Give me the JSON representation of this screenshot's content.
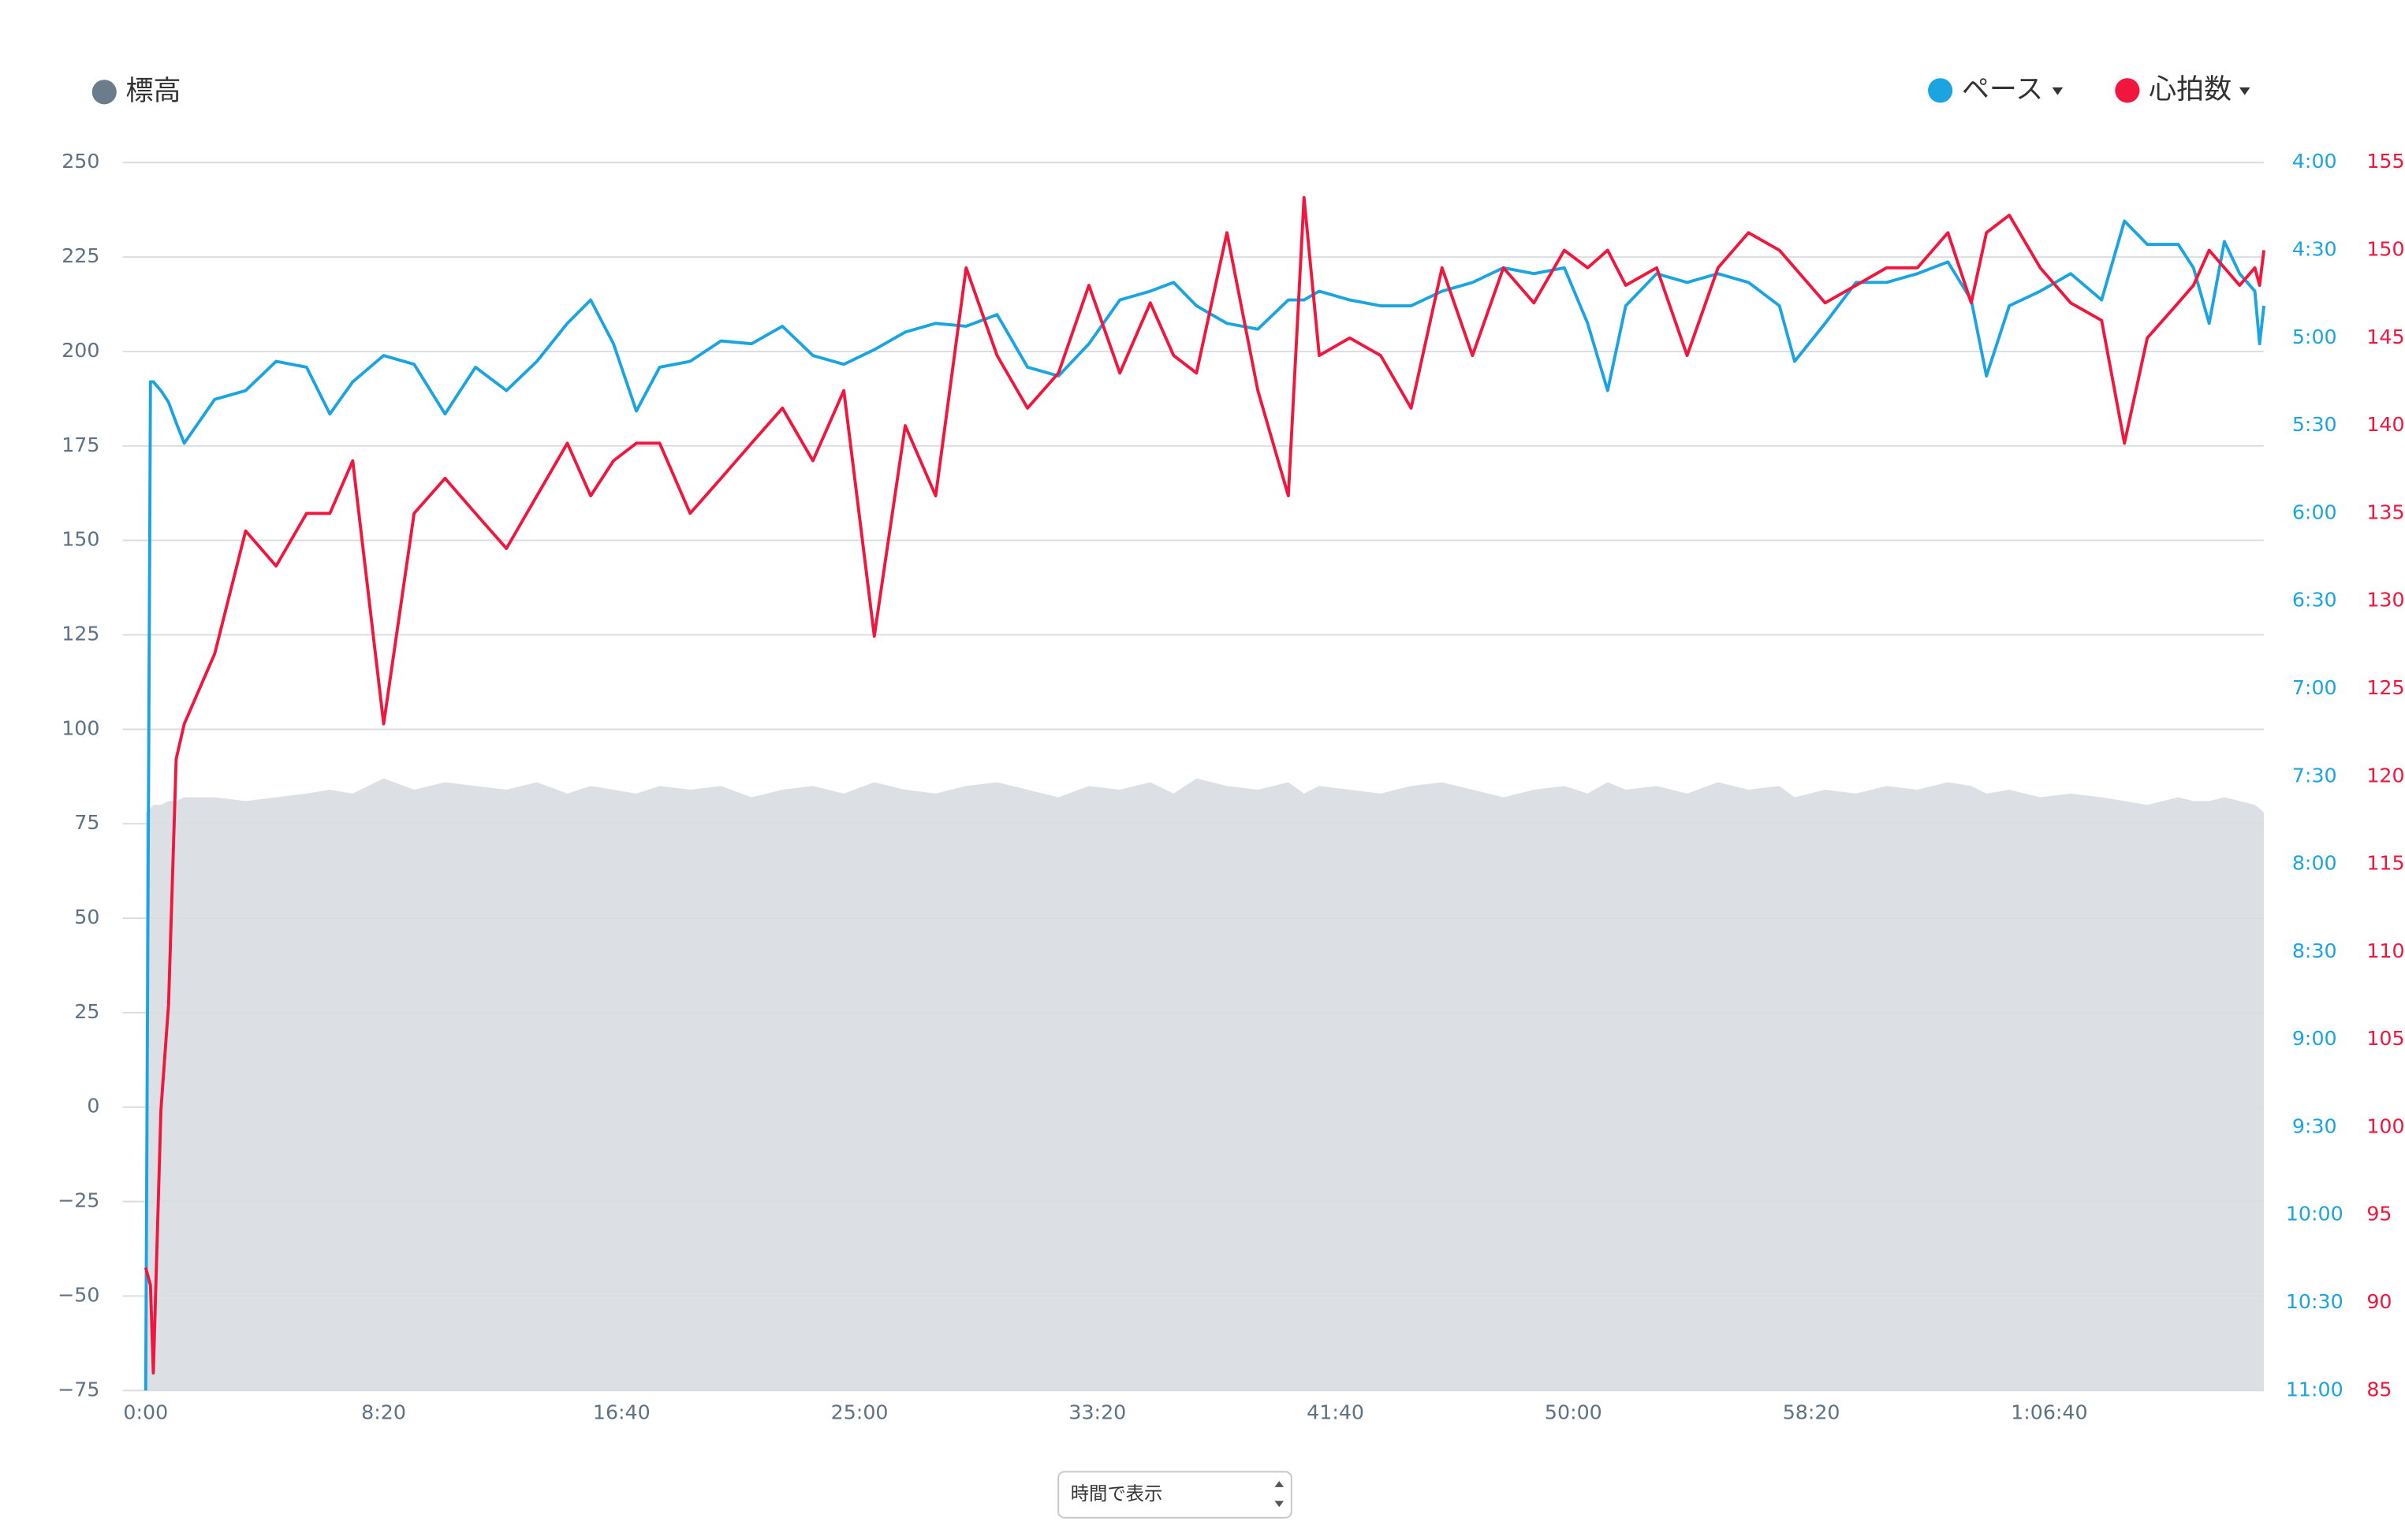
{
  "chart_data": {
    "type": "line",
    "x": [
      0,
      10,
      16,
      32,
      48,
      64,
      81,
      145,
      210,
      274,
      338,
      387,
      435,
      500,
      564,
      629,
      693,
      758,
      822,
      886,
      935,
      983,
      1031,
      1080,
      1144,
      1209,
      1273,
      1338,
      1402,
      1467,
      1531,
      1596,
      1660,
      1724,
      1789,
      1853,
      1918,
      1982,
      2047,
      2111,
      2160,
      2208,
      2272,
      2337,
      2401,
      2434,
      2466,
      2530,
      2595,
      2659,
      2724,
      2788,
      2853,
      2917,
      2981,
      3030,
      3072,
      3110,
      3175,
      3239,
      3304,
      3368,
      3433,
      3465,
      3529,
      3594,
      3658,
      3723,
      3787,
      3836,
      3868,
      3916,
      3981,
      4045,
      4110,
      4158,
      4206,
      4271,
      4303,
      4336,
      4368,
      4400,
      4432,
      4442,
      4451
    ],
    "xlim": [
      0,
      4451
    ],
    "xticks": [
      {
        "value": 0,
        "label": "0:00"
      },
      {
        "value": 500,
        "label": "8:20"
      },
      {
        "value": 1000,
        "label": "16:40"
      },
      {
        "value": 1500,
        "label": "25:00"
      },
      {
        "value": 2000,
        "label": "33:20"
      },
      {
        "value": 2500,
        "label": "41:40"
      },
      {
        "value": 3000,
        "label": "50:00"
      },
      {
        "value": 3500,
        "label": "58:20"
      },
      {
        "value": 4000,
        "label": "1:06:40"
      }
    ],
    "ylim": [
      -75,
      250
    ],
    "yticks": [
      250,
      225,
      200,
      175,
      150,
      125,
      100,
      75,
      50,
      25,
      0,
      {
        "value": -25,
        "label": "−25"
      },
      {
        "value": -50,
        "label": "−50"
      },
      {
        "value": -75,
        "label": "−75"
      }
    ],
    "y2lim": [
      660,
      240
    ],
    "y2ticks": [
      {
        "value": 240,
        "label": "4:00"
      },
      {
        "value": 270,
        "label": "4:30"
      },
      {
        "value": 300,
        "label": "5:00"
      },
      {
        "value": 330,
        "label": "5:30"
      },
      {
        "value": 360,
        "label": "6:00"
      },
      {
        "value": 390,
        "label": "6:30"
      },
      {
        "value": 420,
        "label": "7:00"
      },
      {
        "value": 450,
        "label": "7:30"
      },
      {
        "value": 480,
        "label": "8:00"
      },
      {
        "value": 510,
        "label": "8:30"
      },
      {
        "value": 540,
        "label": "9:00"
      },
      {
        "value": 570,
        "label": "9:30"
      },
      {
        "value": 600,
        "label": "10:00"
      },
      {
        "value": 630,
        "label": "10:30"
      },
      {
        "value": 660,
        "label": "11:00"
      }
    ],
    "y3lim": [
      85,
      155
    ],
    "y3ticks": [
      155,
      150,
      145,
      140,
      135,
      130,
      125,
      120,
      115,
      110,
      105,
      100,
      95,
      90,
      85
    ],
    "grid": true,
    "series": [
      {
        "name": "標高",
        "type": "area",
        "color": "#6b7c8c",
        "fill": "#dce0e4",
        "axis": "y",
        "values": [
          78,
          79,
          80,
          80,
          81,
          81,
          82,
          82,
          81,
          82,
          83,
          84,
          83,
          87,
          84,
          86,
          85,
          84,
          86,
          83,
          85,
          84,
          83,
          85,
          84,
          85,
          82,
          84,
          85,
          83,
          86,
          84,
          83,
          85,
          86,
          84,
          82,
          85,
          84,
          86,
          83,
          87,
          85,
          84,
          86,
          83,
          85,
          84,
          83,
          85,
          86,
          84,
          82,
          84,
          85,
          83,
          86,
          84,
          85,
          83,
          86,
          84,
          85,
          82,
          84,
          83,
          85,
          84,
          86,
          85,
          83,
          84,
          82,
          83,
          82,
          81,
          80,
          82,
          81,
          81,
          82,
          81,
          80,
          79,
          78
        ]
      },
      {
        "name": "ペース",
        "type": "line",
        "color": "#1ba4e0",
        "axis": "y2",
        "values": [
          660,
          315,
          315,
          318,
          322,
          329,
          336,
          321,
          318,
          308,
          310,
          326,
          315,
          306,
          309,
          326,
          310,
          318,
          308,
          295,
          287,
          302,
          325,
          310,
          308,
          301,
          302,
          296,
          306,
          309,
          304,
          298,
          295,
          296,
          292,
          310,
          313,
          302,
          287,
          284,
          281,
          289,
          295,
          297,
          287,
          287,
          284,
          287,
          289,
          289,
          284,
          281,
          276,
          278,
          276,
          295,
          318,
          289,
          278,
          281,
          278,
          281,
          289,
          308,
          295,
          281,
          281,
          278,
          274,
          287,
          313,
          289,
          284,
          278,
          287,
          260,
          268,
          268,
          276,
          295,
          267,
          278,
          284,
          302,
          289
        ]
      },
      {
        "name": "心拍数",
        "type": "line",
        "color": "#f0163d",
        "axis": "y3",
        "values": [
          92,
          91,
          86,
          101,
          107,
          121,
          123,
          127,
          134,
          132,
          135,
          135,
          138,
          123,
          135,
          137,
          135,
          133,
          136,
          139,
          136,
          138,
          139,
          139,
          135,
          137,
          139,
          141,
          138,
          142,
          128,
          140,
          136,
          149,
          144,
          141,
          143,
          148,
          143,
          147,
          144,
          143,
          151,
          142,
          136,
          153,
          144,
          145,
          144,
          141,
          149,
          144,
          149,
          147,
          150,
          149,
          150,
          148,
          149,
          144,
          149,
          151,
          150,
          149,
          147,
          148,
          149,
          149,
          151,
          147,
          151,
          152,
          149,
          147,
          146,
          139,
          145,
          147,
          148,
          150,
          149,
          148,
          149,
          148,
          150
        ]
      }
    ]
  },
  "controls": {
    "select": "時間で表示"
  }
}
